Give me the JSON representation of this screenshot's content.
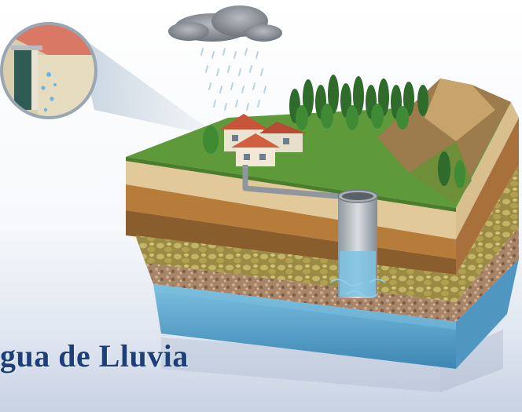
{
  "title": "gua de Lluvia",
  "colors": {
    "title": "#1d3f7a",
    "grass": "#5e9a3a",
    "water": "#5aa6cc",
    "sand": "#e2c99a",
    "clay": "#b87c3a",
    "gravel": "#9c7c62",
    "roof": "#c8553a",
    "cloud": "#8f959c"
  },
  "icons": [
    "rain-cloud-icon",
    "house-icon",
    "well-icon",
    "tree-icon",
    "mountain-icon",
    "magnifier-icon"
  ]
}
